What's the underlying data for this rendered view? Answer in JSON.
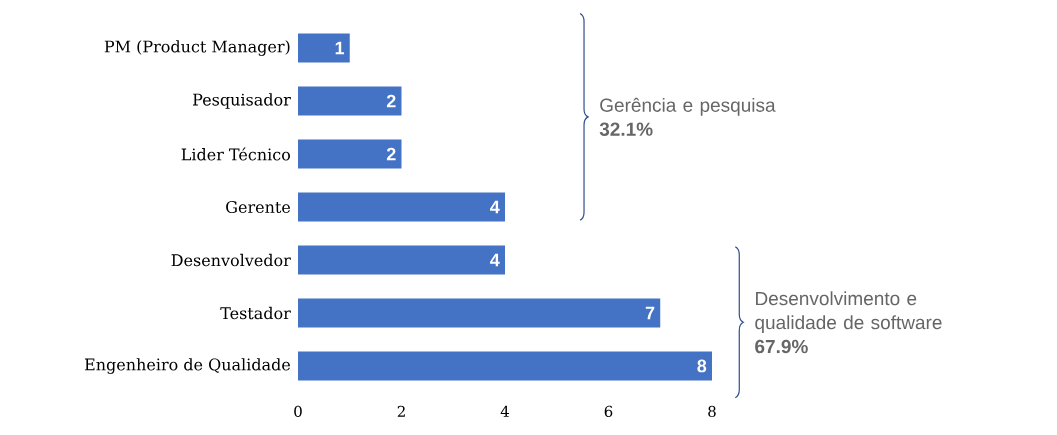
{
  "chart_data": {
    "type": "bar",
    "orientation": "horizontal",
    "categories": [
      "PM (Product Manager)",
      "Pesquisador",
      "Lider Técnico",
      "Gerente",
      "Desenvolvedor",
      "Testador",
      "Engenheiro de Qualidade"
    ],
    "values": [
      1,
      2,
      2,
      4,
      4,
      7,
      8
    ],
    "color": "#4472c4",
    "xlim": [
      0,
      8
    ],
    "xticks": [
      0,
      2,
      4,
      6,
      8
    ],
    "data_labels": true,
    "annotations": [
      "Gerência e pesquisa **32.1%**",
      "Desenvolvimento e qualidade de software **67.9%**"
    ]
  }
}
